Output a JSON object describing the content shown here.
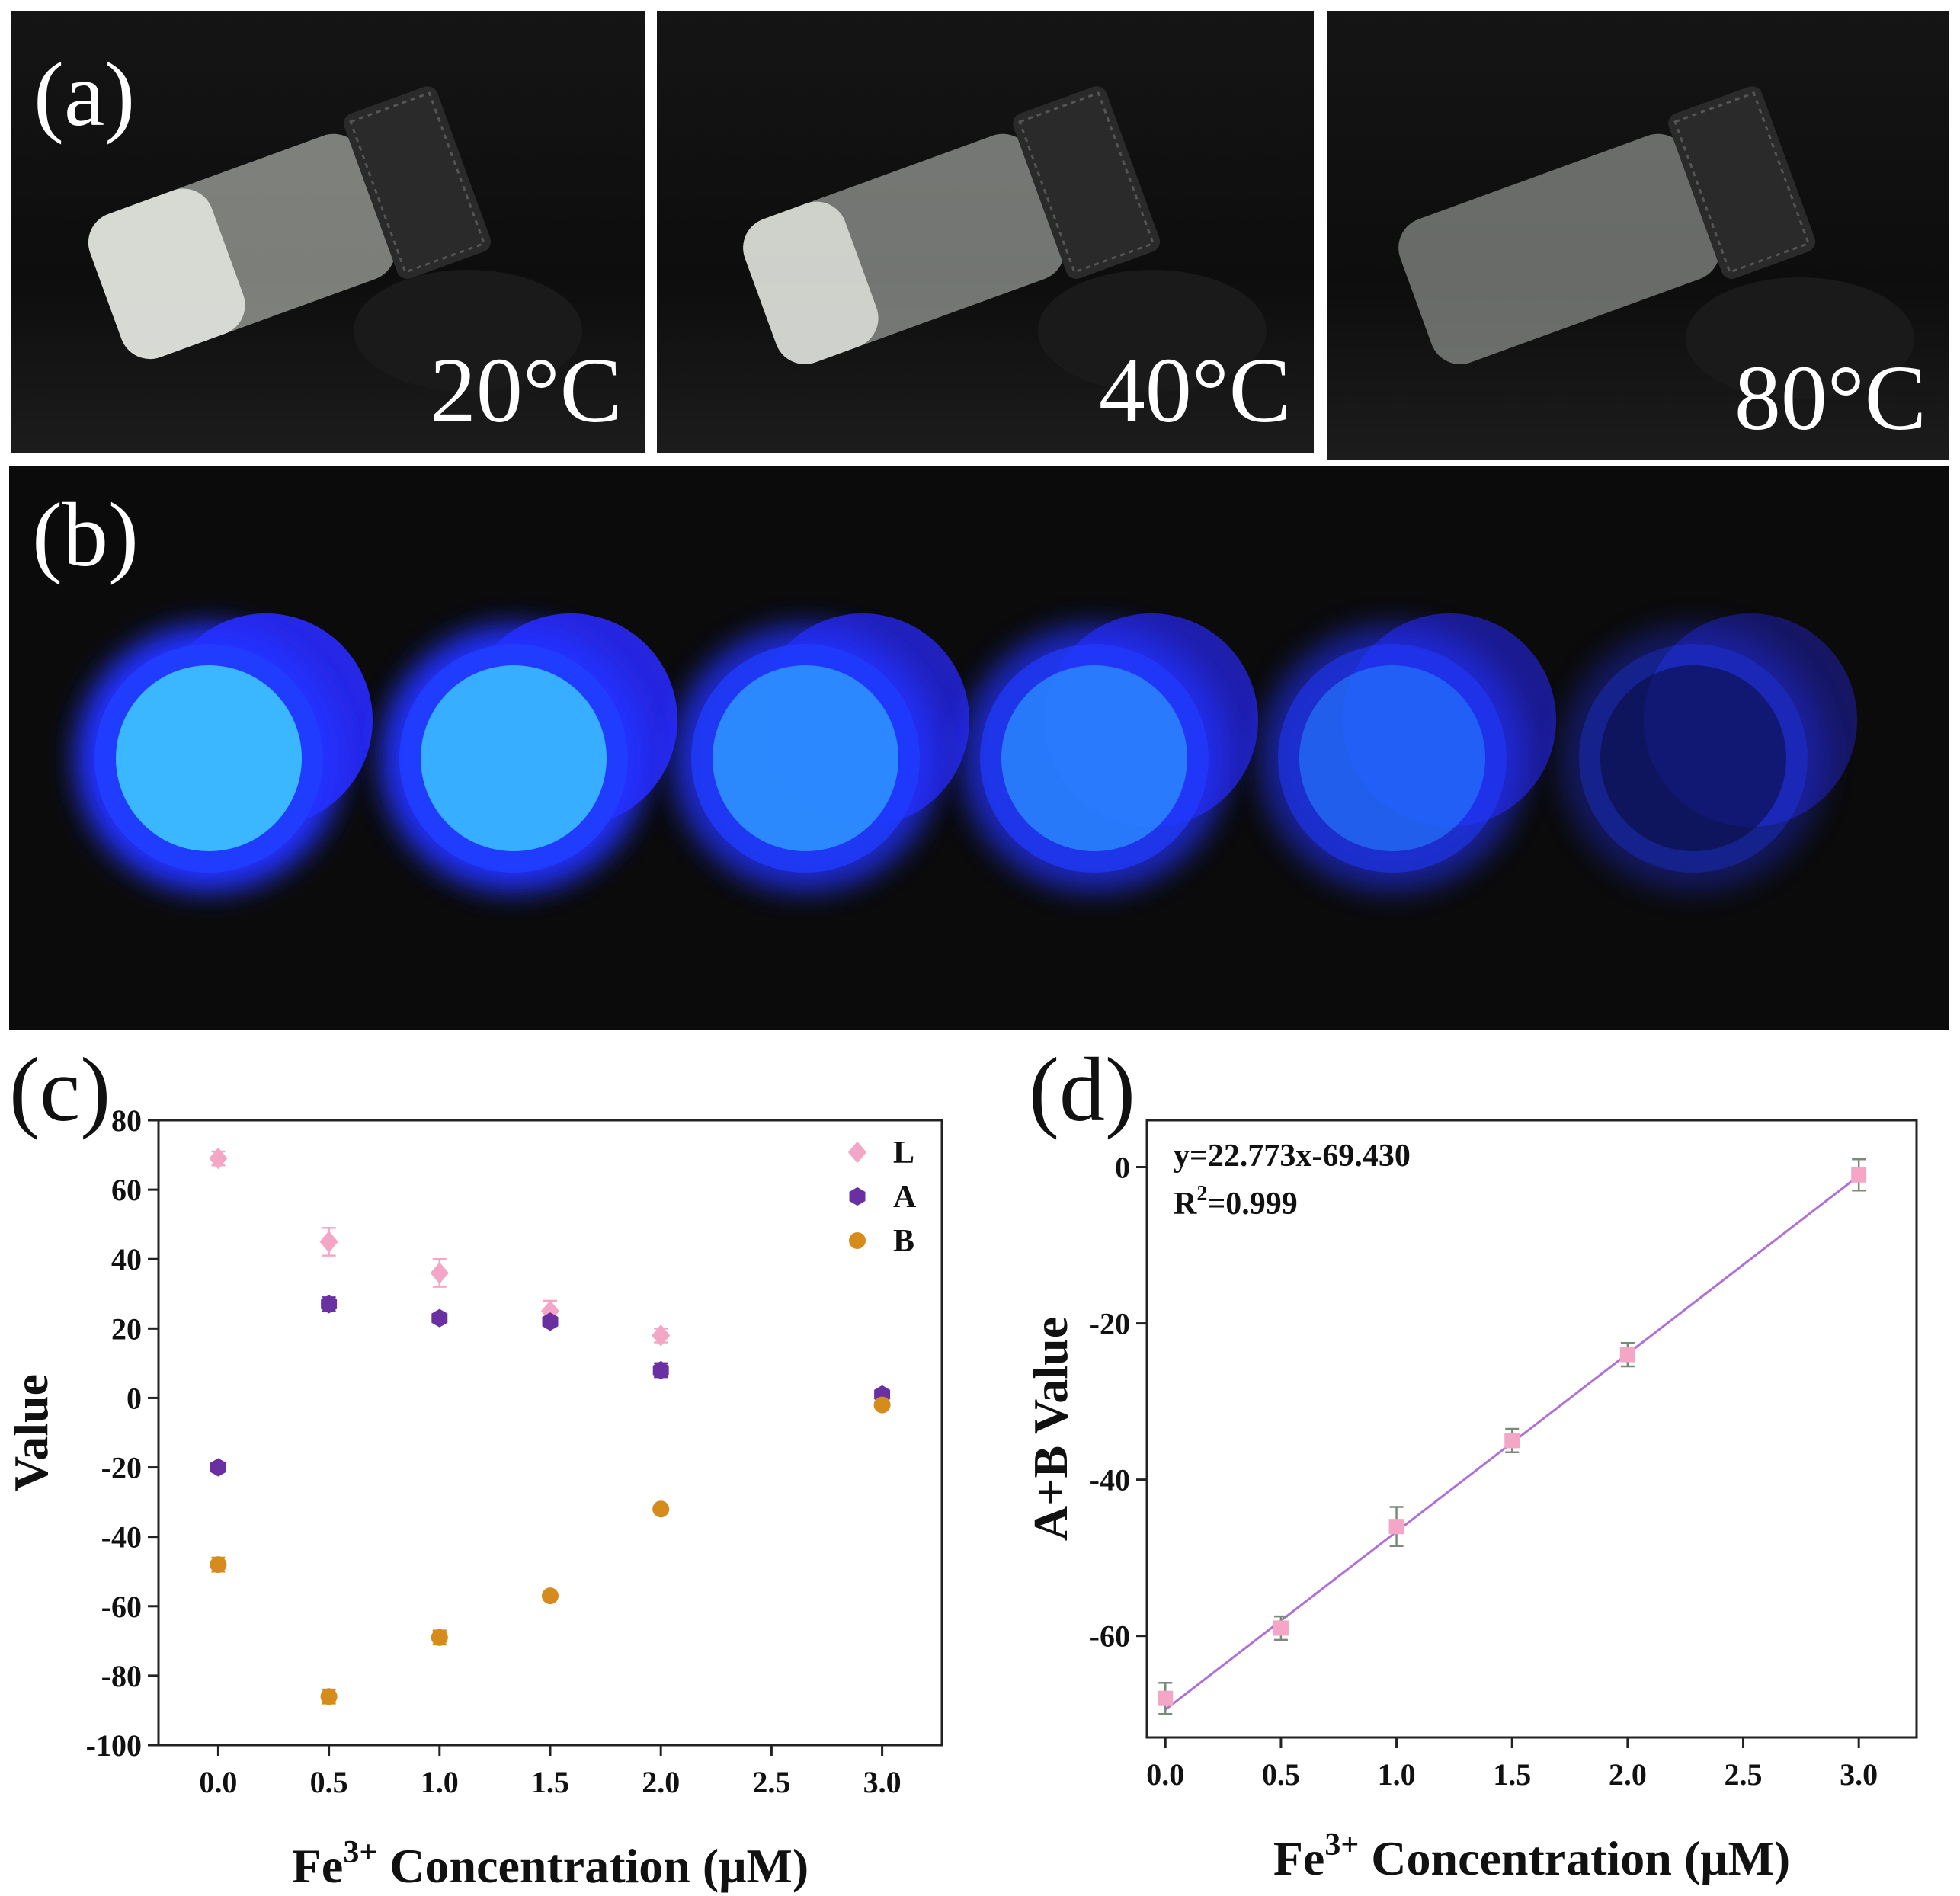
{
  "panel_a": {
    "label": "(a)",
    "temperatures": [
      "20°C",
      "40°C",
      "80°C"
    ]
  },
  "panel_b": {
    "label": "(b)",
    "fluorescence_levels": [
      1.0,
      0.95,
      0.72,
      0.62,
      0.42,
      0.12
    ],
    "glow_color": "#2b58ff"
  },
  "chart_data": [
    {
      "panel": "(c)",
      "type": "scatter",
      "xlabel_parts": [
        "Fe",
        "3+",
        " Concentration (μM)"
      ],
      "ylabel": "Value",
      "x_ticks": [
        "0.0",
        "0.5",
        "1.0",
        "1.5",
        "2.0",
        "2.5",
        "3.0"
      ],
      "y_ticks": [
        "80",
        "60",
        "40",
        "20",
        "0",
        "-20",
        "-40",
        "-60",
        "-80",
        "-100"
      ],
      "xlim": [
        -0.27,
        3.27
      ],
      "ylim": [
        -100,
        80
      ],
      "legend_position": "top-right",
      "series": [
        {
          "name": "L",
          "marker": "diamond",
          "color": "#f4a6c6",
          "x": [
            0.0,
            0.5,
            1.0,
            1.5,
            2.0
          ],
          "y": [
            69,
            45,
            36,
            25,
            18
          ],
          "err": [
            2,
            4,
            4,
            3,
            2
          ]
        },
        {
          "name": "A",
          "marker": "hexagon",
          "color": "#6a2fa0",
          "x": [
            0.0,
            0.5,
            1.0,
            1.5,
            2.0,
            3.0
          ],
          "y": [
            -20,
            27,
            23,
            22,
            8,
            1
          ],
          "err": [
            1,
            2,
            1,
            1,
            2,
            1
          ]
        },
        {
          "name": "B",
          "marker": "circle",
          "color": "#d68c1c",
          "x": [
            0.0,
            0.5,
            1.0,
            1.5,
            2.0,
            3.0
          ],
          "y": [
            -48,
            -86,
            -69,
            -57,
            -32,
            -2
          ],
          "err": [
            2,
            2,
            2,
            1,
            1,
            1
          ]
        }
      ]
    },
    {
      "panel": "(d)",
      "type": "scatter",
      "xlabel_parts": [
        "Fe",
        "3+",
        " Concentration (μM)"
      ],
      "ylabel": "A+B Value",
      "x_ticks": [
        "0.0",
        "0.5",
        "1.0",
        "1.5",
        "2.0",
        "2.5",
        "3.0"
      ],
      "y_ticks": [
        "0",
        "-20",
        "-40",
        "-60"
      ],
      "xlim": [
        -0.08,
        3.25
      ],
      "ylim": [
        -73,
        6
      ],
      "equation": "y=22.773x-69.430",
      "r2_parts": [
        "R",
        "2",
        "=0.999"
      ],
      "fit": {
        "slope": 22.773,
        "intercept": -69.43,
        "color": "#b070d8"
      },
      "series": [
        {
          "name": "A+B",
          "marker": "square",
          "color": "#f4a6c6",
          "x": [
            0.0,
            0.5,
            1.0,
            1.5,
            2.0,
            3.0
          ],
          "y": [
            -68,
            -59,
            -46,
            -35,
            -24,
            -1
          ],
          "err": [
            2,
            1.5,
            2.5,
            1.5,
            1.5,
            2
          ]
        }
      ]
    }
  ]
}
